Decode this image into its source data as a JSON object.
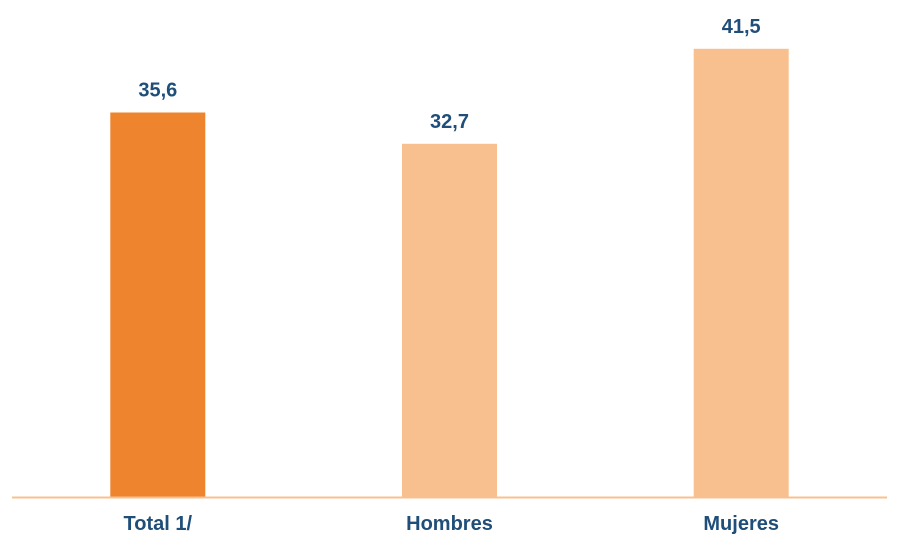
{
  "chart_data": {
    "type": "bar",
    "categories": [
      "Total 1/",
      "Hombres",
      "Mujeres"
    ],
    "values": [
      35.6,
      32.7,
      41.5
    ],
    "value_labels": [
      "35,6",
      "32,7",
      "41,5"
    ],
    "colors": [
      "#ee842d",
      "#f9c08f",
      "#f9c08f"
    ],
    "axis_color": "#f9c08f",
    "label_color": "#1f4e79",
    "title": "",
    "xlabel": "",
    "ylabel": "",
    "ylim": [
      0,
      45
    ],
    "grid": false,
    "legend": "none"
  }
}
